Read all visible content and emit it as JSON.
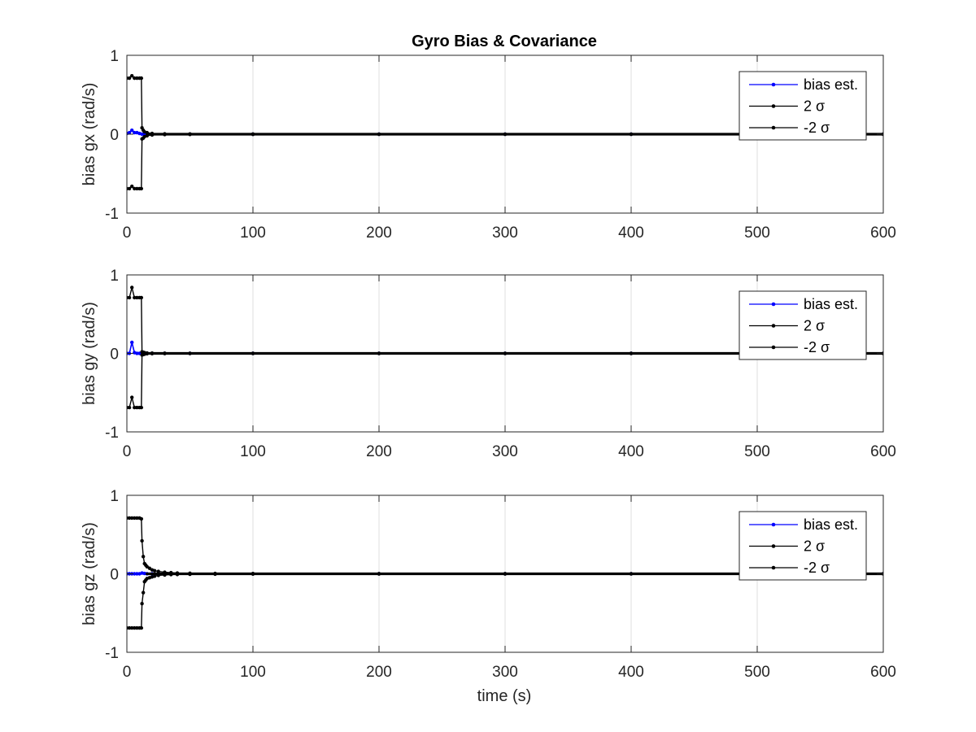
{
  "chart_data": [
    {
      "type": "line",
      "title": "Gyro Bias & Covariance",
      "xlabel": "",
      "ylabel": "bias gx (rad/s)",
      "xlim": [
        0,
        600
      ],
      "ylim": [
        -1,
        1
      ],
      "xticks": [
        0,
        100,
        200,
        300,
        400,
        500,
        600
      ],
      "yticks": [
        -1,
        0,
        1
      ],
      "grid_x": true,
      "legend_position": "top-right",
      "series": [
        {
          "name": "bias est.",
          "color": "#0000ff",
          "x": [
            0,
            2,
            4,
            6,
            8,
            10,
            12,
            14,
            20,
            30,
            50,
            100,
            200,
            300,
            400,
            500,
            600
          ],
          "y": [
            0.01,
            0.02,
            0.05,
            0.02,
            0.02,
            0.01,
            0.0,
            0.0,
            0.0,
            0.0,
            0.0,
            0.0,
            0.0,
            0.0,
            0.0,
            0.0,
            0.0
          ]
        },
        {
          "name": "2 σ",
          "color": "#000000",
          "x": [
            0,
            2,
            4,
            6,
            8,
            10,
            11.5,
            12,
            13,
            14,
            16,
            20,
            30,
            50,
            100,
            200,
            300,
            400,
            500,
            600
          ],
          "y": [
            0.71,
            0.71,
            0.74,
            0.71,
            0.71,
            0.71,
            0.71,
            0.08,
            0.05,
            0.03,
            0.02,
            0.01,
            0.005,
            0.003,
            0.002,
            0.001,
            0.001,
            0.001,
            0.001,
            0.001
          ]
        },
        {
          "name": "-2 σ",
          "color": "#000000",
          "x": [
            0,
            2,
            4,
            6,
            8,
            10,
            11.5,
            12,
            13,
            14,
            16,
            20,
            30,
            50,
            100,
            200,
            300,
            400,
            500,
            600
          ],
          "y": [
            -0.69,
            -0.69,
            -0.66,
            -0.69,
            -0.69,
            -0.69,
            -0.69,
            -0.06,
            -0.05,
            -0.03,
            -0.02,
            -0.01,
            -0.005,
            -0.003,
            -0.002,
            -0.001,
            -0.001,
            -0.001,
            -0.001,
            -0.001
          ]
        }
      ]
    },
    {
      "type": "line",
      "title": "",
      "xlabel": "",
      "ylabel": "bias gy (rad/s)",
      "xlim": [
        0,
        600
      ],
      "ylim": [
        -1,
        1
      ],
      "xticks": [
        0,
        100,
        200,
        300,
        400,
        500,
        600
      ],
      "yticks": [
        -1,
        0,
        1
      ],
      "grid_x": true,
      "legend_position": "top-right",
      "series": [
        {
          "name": "bias est.",
          "color": "#0000ff",
          "x": [
            0,
            2,
            4,
            6,
            8,
            10,
            12,
            14,
            20,
            30,
            50,
            100,
            200,
            300,
            400,
            500,
            600
          ],
          "y": [
            0.0,
            0.0,
            0.14,
            0.01,
            0.0,
            0.0,
            0.0,
            0.0,
            0.0,
            0.0,
            0.0,
            0.0,
            0.0,
            0.0,
            0.0,
            0.0,
            0.0
          ]
        },
        {
          "name": "2 σ",
          "color": "#000000",
          "x": [
            0,
            2,
            4,
            6,
            8,
            10,
            11.5,
            12,
            13,
            14,
            16,
            20,
            30,
            50,
            100,
            200,
            300,
            400,
            500,
            600
          ],
          "y": [
            0.71,
            0.71,
            0.84,
            0.71,
            0.71,
            0.71,
            0.71,
            0.02,
            0.015,
            0.01,
            0.005,
            0.003,
            0.002,
            0.001,
            0.001,
            0.001,
            0.001,
            0.001,
            0.001,
            0.001
          ]
        },
        {
          "name": "-2 σ",
          "color": "#000000",
          "x": [
            0,
            2,
            4,
            6,
            8,
            10,
            11.5,
            12,
            13,
            14,
            16,
            20,
            30,
            50,
            100,
            200,
            300,
            400,
            500,
            600
          ],
          "y": [
            -0.69,
            -0.69,
            -0.56,
            -0.69,
            -0.69,
            -0.69,
            -0.69,
            -0.02,
            -0.015,
            -0.01,
            -0.005,
            -0.003,
            -0.002,
            -0.001,
            -0.001,
            -0.001,
            -0.001,
            -0.001,
            -0.001,
            -0.001
          ]
        }
      ]
    },
    {
      "type": "line",
      "title": "",
      "xlabel": "time (s)",
      "ylabel": "bias gz (rad/s)",
      "xlim": [
        0,
        600
      ],
      "ylim": [
        -1,
        1
      ],
      "xticks": [
        0,
        100,
        200,
        300,
        400,
        500,
        600
      ],
      "yticks": [
        -1,
        0,
        1
      ],
      "grid_x": true,
      "legend_position": "top-right",
      "series": [
        {
          "name": "bias est.",
          "color": "#0000ff",
          "x": [
            0,
            2,
            4,
            6,
            8,
            10,
            12,
            14,
            16,
            20,
            30,
            50,
            100,
            200,
            300,
            400,
            500,
            600
          ],
          "y": [
            0.0,
            0.0,
            0.0,
            0.0,
            0.0,
            0.0,
            0.01,
            0.005,
            0.0,
            0.0,
            0.0,
            0.0,
            0.0,
            0.0,
            0.0,
            0.0,
            0.0,
            0.0
          ]
        },
        {
          "name": "2 σ",
          "color": "#000000",
          "x": [
            0,
            2,
            4,
            6,
            8,
            10,
            11.5,
            12,
            13,
            14,
            15,
            16,
            18,
            20,
            22,
            25,
            30,
            35,
            40,
            50,
            70,
            100,
            200,
            300,
            400,
            500,
            600
          ],
          "y": [
            0.71,
            0.71,
            0.71,
            0.71,
            0.71,
            0.71,
            0.7,
            0.42,
            0.22,
            0.13,
            0.11,
            0.09,
            0.07,
            0.05,
            0.04,
            0.03,
            0.02,
            0.015,
            0.01,
            0.007,
            0.005,
            0.003,
            0.002,
            0.002,
            0.001,
            0.001,
            0.001
          ]
        },
        {
          "name": "-2 σ",
          "color": "#000000",
          "x": [
            0,
            2,
            4,
            6,
            8,
            10,
            11.5,
            12,
            13,
            14,
            15,
            16,
            18,
            20,
            22,
            25,
            30,
            35,
            40,
            50,
            70,
            100,
            200,
            300,
            400,
            500,
            600
          ],
          "y": [
            -0.69,
            -0.69,
            -0.69,
            -0.69,
            -0.69,
            -0.69,
            -0.69,
            -0.38,
            -0.24,
            -0.1,
            -0.08,
            -0.06,
            -0.05,
            -0.04,
            -0.03,
            -0.02,
            -0.015,
            -0.01,
            -0.008,
            -0.006,
            -0.004,
            -0.003,
            -0.002,
            -0.002,
            -0.001,
            -0.001,
            -0.001
          ]
        }
      ]
    }
  ]
}
